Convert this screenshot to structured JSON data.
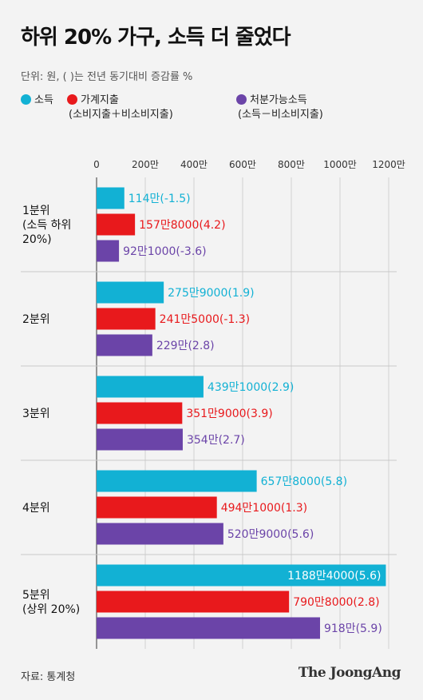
{
  "title": "하위 20% 가구, 소득 더 줄었다",
  "unit_note": "단위: 원, ( )는 전년 동기대비 증감률 %",
  "legend": [
    {
      "label": "소득",
      "sub": "",
      "color": "#12b1d4"
    },
    {
      "label": "가계지출",
      "sub": "(소비지출＋비소비지출)",
      "color": "#e8191c"
    },
    {
      "label": "처분가능소득",
      "sub": "(소득－비소비지출)",
      "color": "#6b44a8"
    }
  ],
  "source": "자료: 통계청",
  "logo": "The JoongAng",
  "chart_data": {
    "type": "bar",
    "orientation": "horizontal",
    "x_ticks": [
      "0",
      "200만",
      "400만",
      "600만",
      "800만",
      "1000만",
      "1200만"
    ],
    "xlim": [
      0,
      12000000
    ],
    "grid": true,
    "categories": [
      [
        "1분위",
        "(소득 하위",
        "20%)"
      ],
      [
        "2분위"
      ],
      [
        "3분위"
      ],
      [
        "4분위"
      ],
      [
        "5분위",
        "(상위 20%)"
      ]
    ],
    "series": [
      {
        "name": "소득",
        "color": "#12b1d4",
        "values": [
          1140000,
          2759000,
          4391000,
          6578000,
          11884000
        ],
        "labels": [
          "114만(-1.5)",
          "275만9000(1.9)",
          "439만1000(2.9)",
          "657만8000(5.8)",
          "1188만4000(5.6)"
        ]
      },
      {
        "name": "가계지출",
        "color": "#e8191c",
        "values": [
          1578000,
          2415000,
          3519000,
          4941000,
          7908000
        ],
        "labels": [
          "157만8000(4.2)",
          "241만5000(-1.3)",
          "351만9000(3.9)",
          "494만1000(1.3)",
          "790만8000(2.8)"
        ]
      },
      {
        "name": "처분가능소득",
        "color": "#6b44a8",
        "values": [
          921000,
          2290000,
          3540000,
          5209000,
          9180000
        ],
        "labels": [
          "92만1000(-3.6)",
          "229만(2.8)",
          "354만(2.7)",
          "520만9000(5.6)",
          "918만(5.9)"
        ]
      }
    ]
  }
}
